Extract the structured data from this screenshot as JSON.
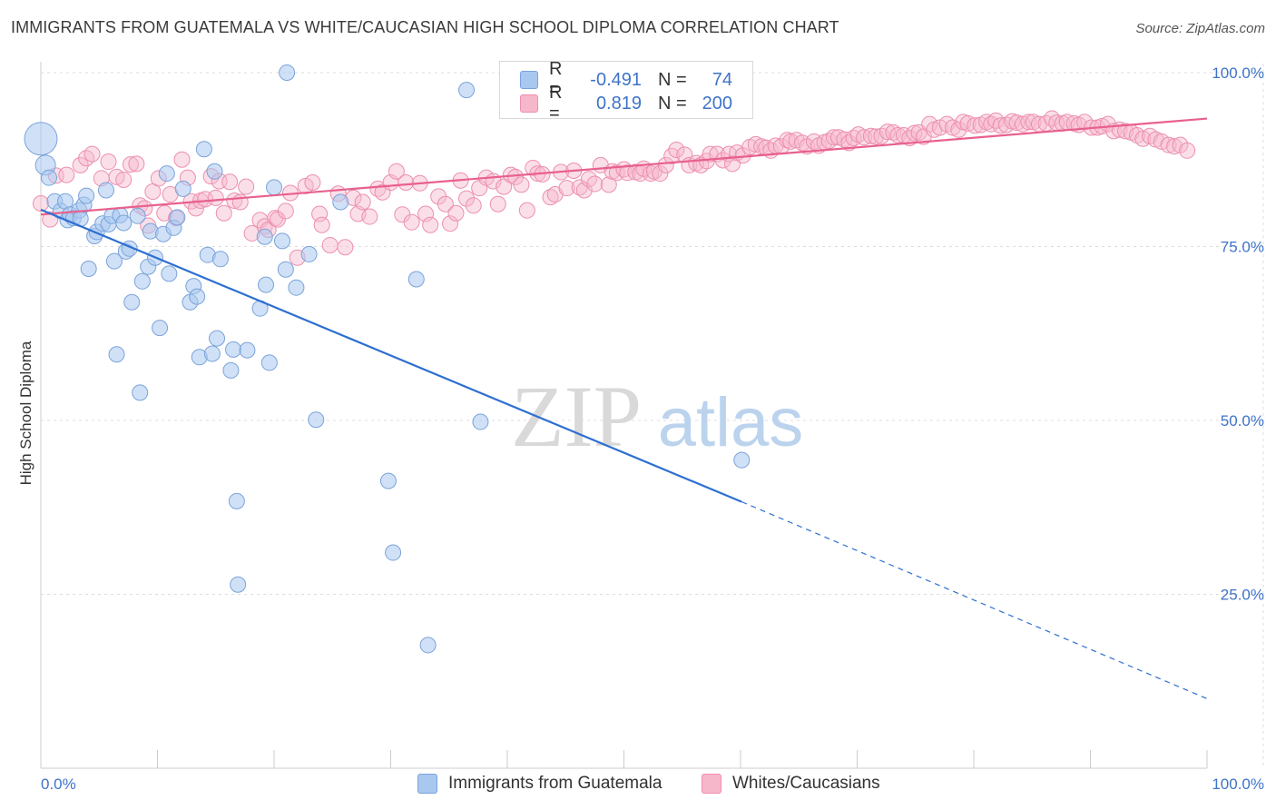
{
  "title": "IMMIGRANTS FROM GUATEMALA VS WHITE/CAUCASIAN HIGH SCHOOL DIPLOMA CORRELATION CHART",
  "source": "Source: ZipAtlas.com",
  "watermark": {
    "zip": "ZIP",
    "atlas": "atlas"
  },
  "legend": {
    "rows": [
      {
        "r_label": "R =",
        "r_value": "-0.491",
        "n_label": "N =",
        "n_value": "74",
        "color": "#a9c8f0"
      },
      {
        "r_label": "R =",
        "r_value": "0.819",
        "n_label": "N =",
        "n_value": "200",
        "color": "#f7b7cb"
      }
    ]
  },
  "bottom_legend": {
    "blue": "Immigrants from Guatemala",
    "pink": "Whites/Caucasians"
  },
  "colors": {
    "blue_fill": "#a9c8f0",
    "blue_stroke": "#7aa3da",
    "blue_line": "#2d6fd1",
    "pink_fill": "#f7b7cb",
    "pink_stroke": "#ec8fae",
    "pink_line": "#e8608d",
    "tick_label": "#3f73c9",
    "grid": "#dddddd"
  },
  "chart_data": {
    "type": "scatter",
    "xlabel": "",
    "ylabel": "High School Diploma",
    "xlim": [
      0,
      100
    ],
    "ylim": [
      0,
      100
    ],
    "x_tick_labels": [
      "0.0%",
      "100.0%"
    ],
    "y_ticks": [
      25,
      50,
      75,
      100
    ],
    "y_tick_labels": [
      "25.0%",
      "50.0%",
      "75.0%",
      "100.0%"
    ],
    "grid": true,
    "legend_position": "top-center",
    "series": [
      {
        "name": "Immigrants from Guatemala",
        "r": -0.491,
        "n": 74,
        "trend": {
          "solid": [
            [
              0,
              80.3
            ],
            [
              60.1,
              38.3
            ]
          ],
          "dashed": [
            [
              60.1,
              38.3
            ],
            [
              100,
              10.0
            ]
          ]
        },
        "points": [
          [
            0.0,
            90.5
          ],
          [
            0.4,
            86.7
          ],
          [
            0.7,
            84.9
          ],
          [
            1.2,
            81.5
          ],
          [
            1.7,
            80.1
          ],
          [
            2.1,
            81.5
          ],
          [
            2.3,
            78.8
          ],
          [
            2.5,
            79.6
          ],
          [
            2.8,
            79.1
          ],
          [
            3.3,
            80.2
          ],
          [
            3.4,
            79.0
          ],
          [
            3.7,
            81.0
          ],
          [
            3.9,
            82.3
          ],
          [
            4.1,
            71.8
          ],
          [
            4.6,
            76.5
          ],
          [
            4.8,
            77.1
          ],
          [
            5.3,
            78.3
          ],
          [
            5.6,
            83.1
          ],
          [
            5.8,
            78.2
          ],
          [
            6.1,
            79.4
          ],
          [
            6.3,
            72.9
          ],
          [
            6.5,
            59.5
          ],
          [
            6.8,
            79.5
          ],
          [
            7.1,
            78.4
          ],
          [
            7.3,
            74.3
          ],
          [
            7.6,
            74.7
          ],
          [
            7.8,
            67.0
          ],
          [
            8.3,
            79.4
          ],
          [
            8.5,
            54.0
          ],
          [
            8.7,
            70.0
          ],
          [
            9.2,
            72.1
          ],
          [
            9.4,
            77.2
          ],
          [
            9.8,
            73.4
          ],
          [
            10.2,
            63.3
          ],
          [
            10.5,
            76.8
          ],
          [
            10.8,
            85.5
          ],
          [
            11.0,
            71.1
          ],
          [
            11.4,
            77.7
          ],
          [
            11.7,
            79.2
          ],
          [
            12.2,
            83.3
          ],
          [
            12.8,
            67.0
          ],
          [
            13.1,
            69.3
          ],
          [
            13.4,
            67.8
          ],
          [
            13.6,
            59.1
          ],
          [
            14.0,
            89.0
          ],
          [
            14.3,
            73.8
          ],
          [
            14.7,
            59.6
          ],
          [
            14.9,
            85.8
          ],
          [
            15.1,
            61.8
          ],
          [
            15.4,
            73.2
          ],
          [
            16.3,
            57.2
          ],
          [
            16.5,
            60.2
          ],
          [
            16.8,
            38.4
          ],
          [
            16.9,
            26.4
          ],
          [
            17.7,
            60.1
          ],
          [
            18.8,
            66.1
          ],
          [
            19.2,
            76.4
          ],
          [
            19.3,
            69.5
          ],
          [
            19.6,
            58.3
          ],
          [
            20.0,
            83.5
          ],
          [
            20.7,
            75.8
          ],
          [
            21.0,
            71.7
          ],
          [
            21.1,
            100.0
          ],
          [
            21.9,
            69.1
          ],
          [
            23.0,
            73.9
          ],
          [
            23.6,
            50.1
          ],
          [
            25.7,
            81.4
          ],
          [
            29.8,
            41.3
          ],
          [
            30.2,
            31.0
          ],
          [
            32.2,
            70.3
          ],
          [
            33.2,
            17.7
          ],
          [
            36.5,
            97.5
          ],
          [
            37.7,
            49.8
          ],
          [
            60.1,
            44.3
          ]
        ]
      },
      {
        "name": "Whites/Caucasians",
        "r": 0.819,
        "n": 200,
        "trend": {
          "solid": [
            [
              0,
              79.6
            ],
            [
              100,
              93.4
            ]
          ]
        },
        "points": [
          [
            0.0,
            81.2
          ],
          [
            0.8,
            78.9
          ],
          [
            1.3,
            85.2
          ],
          [
            2.2,
            85.3
          ],
          [
            3.4,
            86.7
          ],
          [
            3.9,
            87.7
          ],
          [
            4.4,
            88.3
          ],
          [
            5.2,
            84.8
          ],
          [
            5.8,
            87.2
          ],
          [
            6.5,
            85.0
          ],
          [
            7.1,
            84.6
          ],
          [
            7.7,
            86.8
          ],
          [
            8.2,
            86.9
          ],
          [
            8.5,
            80.9
          ],
          [
            8.9,
            80.5
          ],
          [
            9.2,
            78.0
          ],
          [
            9.6,
            82.9
          ],
          [
            10.1,
            84.8
          ],
          [
            10.6,
            79.8
          ],
          [
            11.1,
            82.5
          ],
          [
            11.6,
            79.1
          ],
          [
            12.1,
            87.5
          ],
          [
            12.6,
            84.9
          ],
          [
            12.9,
            81.5
          ],
          [
            13.3,
            80.5
          ],
          [
            13.7,
            81.6
          ],
          [
            14.1,
            81.8
          ],
          [
            14.6,
            85.1
          ],
          [
            15.0,
            82.0
          ],
          [
            15.3,
            84.4
          ],
          [
            15.7,
            79.8
          ],
          [
            16.2,
            84.3
          ],
          [
            16.6,
            81.6
          ],
          [
            17.1,
            81.4
          ],
          [
            17.6,
            83.6
          ],
          [
            18.1,
            76.9
          ],
          [
            18.8,
            78.8
          ],
          [
            19.2,
            77.9
          ],
          [
            19.5,
            77.4
          ],
          [
            20.1,
            79.1
          ],
          [
            20.3,
            78.9
          ],
          [
            21.0,
            80.1
          ],
          [
            21.4,
            82.7
          ],
          [
            22.0,
            73.4
          ],
          [
            22.7,
            83.7
          ],
          [
            23.3,
            84.2
          ],
          [
            23.9,
            79.7
          ],
          [
            24.1,
            78.1
          ],
          [
            24.8,
            75.2
          ],
          [
            25.5,
            82.6
          ],
          [
            26.1,
            74.9
          ],
          [
            26.8,
            82.0
          ],
          [
            27.2,
            79.7
          ],
          [
            27.6,
            81.4
          ],
          [
            28.2,
            79.3
          ],
          [
            28.9,
            83.3
          ],
          [
            29.3,
            82.8
          ],
          [
            30.0,
            84.2
          ],
          [
            30.5,
            85.8
          ],
          [
            31.0,
            79.6
          ],
          [
            31.3,
            84.2
          ],
          [
            31.8,
            78.5
          ],
          [
            32.5,
            84.1
          ],
          [
            33.0,
            79.7
          ],
          [
            33.4,
            78.1
          ],
          [
            34.1,
            82.2
          ],
          [
            34.7,
            81.1
          ],
          [
            35.1,
            78.3
          ],
          [
            35.6,
            79.8
          ],
          [
            36.0,
            84.5
          ],
          [
            36.5,
            81.9
          ],
          [
            37.1,
            80.9
          ],
          [
            37.6,
            83.4
          ],
          [
            38.2,
            84.9
          ],
          [
            38.8,
            84.4
          ],
          [
            39.2,
            81.1
          ],
          [
            39.7,
            83.6
          ],
          [
            40.3,
            85.3
          ],
          [
            40.7,
            85.0
          ],
          [
            41.2,
            83.9
          ],
          [
            41.7,
            80.2
          ],
          [
            42.2,
            86.3
          ],
          [
            42.6,
            85.5
          ],
          [
            43.0,
            85.4
          ],
          [
            43.7,
            82.1
          ],
          [
            44.1,
            82.5
          ],
          [
            44.6,
            85.7
          ],
          [
            45.1,
            83.4
          ],
          [
            45.7,
            85.9
          ],
          [
            46.2,
            83.5
          ],
          [
            46.6,
            83.1
          ],
          [
            47.0,
            84.7
          ],
          [
            47.5,
            84.0
          ],
          [
            48.0,
            86.7
          ],
          [
            48.7,
            83.9
          ],
          [
            49.0,
            85.8
          ],
          [
            49.4,
            85.6
          ],
          [
            50.0,
            86.1
          ],
          [
            50.3,
            85.6
          ],
          [
            51.0,
            85.7
          ],
          [
            51.4,
            85.5
          ],
          [
            51.7,
            86.2
          ],
          [
            52.3,
            85.5
          ],
          [
            52.6,
            85.8
          ],
          [
            53.1,
            85.5
          ],
          [
            53.6,
            86.7
          ],
          [
            54.1,
            88.0
          ],
          [
            54.5,
            88.9
          ],
          [
            55.2,
            88.2
          ],
          [
            55.6,
            86.7
          ],
          [
            56.2,
            87.0
          ],
          [
            56.6,
            86.7
          ],
          [
            57.1,
            87.3
          ],
          [
            57.4,
            88.3
          ],
          [
            58.0,
            88.3
          ],
          [
            58.5,
            87.4
          ],
          [
            59.0,
            88.3
          ],
          [
            59.3,
            86.9
          ],
          [
            59.7,
            88.5
          ],
          [
            60.2,
            88.1
          ],
          [
            60.8,
            89.3
          ],
          [
            61.3,
            89.7
          ],
          [
            61.8,
            89.4
          ],
          [
            62.2,
            89.2
          ],
          [
            62.6,
            88.8
          ],
          [
            63.0,
            89.5
          ],
          [
            63.5,
            89.4
          ],
          [
            64.0,
            90.3
          ],
          [
            64.3,
            90.1
          ],
          [
            64.8,
            90.3
          ],
          [
            65.3,
            89.9
          ],
          [
            65.7,
            89.4
          ],
          [
            66.3,
            90.1
          ],
          [
            66.7,
            89.5
          ],
          [
            67.2,
            90.0
          ],
          [
            67.6,
            90.2
          ],
          [
            68.0,
            90.7
          ],
          [
            68.4,
            90.7
          ],
          [
            68.9,
            90.4
          ],
          [
            69.3,
            89.9
          ],
          [
            69.7,
            90.6
          ],
          [
            70.1,
            91.1
          ],
          [
            70.6,
            90.7
          ],
          [
            71.2,
            90.9
          ],
          [
            71.6,
            90.8
          ],
          [
            72.1,
            90.9
          ],
          [
            72.6,
            91.5
          ],
          [
            73.1,
            91.4
          ],
          [
            73.5,
            91.0
          ],
          [
            74.0,
            91.0
          ],
          [
            74.5,
            90.6
          ],
          [
            74.9,
            91.3
          ],
          [
            75.3,
            91.4
          ],
          [
            75.7,
            90.8
          ],
          [
            76.2,
            92.6
          ],
          [
            76.6,
            91.8
          ],
          [
            77.1,
            92.1
          ],
          [
            77.7,
            92.6
          ],
          [
            78.2,
            92.1
          ],
          [
            78.7,
            91.8
          ],
          [
            79.1,
            92.9
          ],
          [
            79.5,
            92.7
          ],
          [
            80.1,
            92.4
          ],
          [
            80.6,
            92.5
          ],
          [
            81.1,
            92.9
          ],
          [
            81.5,
            92.6
          ],
          [
            81.9,
            93.1
          ],
          [
            82.3,
            92.4
          ],
          [
            82.8,
            92.5
          ],
          [
            83.3,
            93.0
          ],
          [
            83.7,
            92.8
          ],
          [
            84.2,
            92.6
          ],
          [
            84.7,
            92.9
          ],
          [
            85.1,
            92.9
          ],
          [
            85.6,
            92.6
          ],
          [
            86.2,
            92.7
          ],
          [
            86.7,
            93.4
          ],
          [
            87.1,
            92.8
          ],
          [
            87.6,
            92.7
          ],
          [
            88.0,
            92.9
          ],
          [
            88.6,
            92.7
          ],
          [
            89.0,
            92.5
          ],
          [
            89.5,
            92.9
          ],
          [
            90.1,
            92.1
          ],
          [
            90.6,
            92.1
          ],
          [
            91.0,
            92.3
          ],
          [
            91.5,
            92.6
          ],
          [
            92.0,
            91.6
          ],
          [
            92.5,
            91.8
          ],
          [
            93.0,
            91.6
          ],
          [
            93.5,
            91.4
          ],
          [
            94.0,
            91.0
          ],
          [
            94.5,
            90.5
          ],
          [
            95.1,
            90.9
          ],
          [
            95.6,
            90.4
          ],
          [
            96.1,
            90.1
          ],
          [
            96.7,
            89.6
          ],
          [
            97.2,
            89.4
          ],
          [
            97.7,
            89.6
          ],
          [
            98.3,
            88.8
          ]
        ]
      }
    ]
  }
}
